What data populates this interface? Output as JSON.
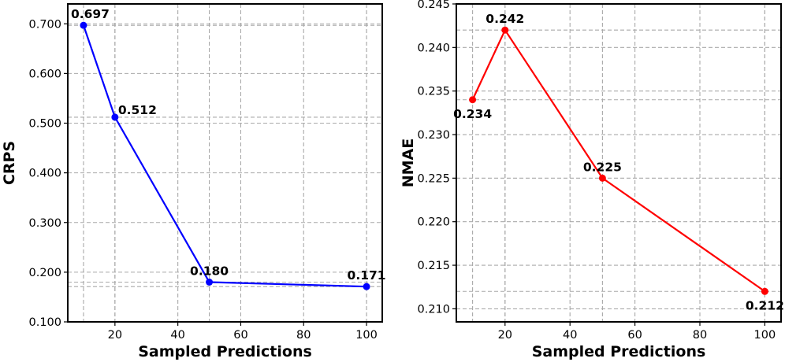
{
  "chart_data": [
    {
      "type": "line",
      "xlabel": "Sampled Predictions",
      "ylabel": "CRPS",
      "x": [
        10,
        20,
        50,
        100
      ],
      "series": [
        {
          "values": [
            0.697,
            0.512,
            0.18,
            0.171
          ],
          "color": "#0000ff"
        }
      ],
      "data_labels": [
        "0.697",
        "0.512",
        "0.180",
        "0.171"
      ],
      "xlim": [
        5,
        105
      ],
      "ylim": [
        0.1,
        0.74
      ],
      "xticks": [
        20,
        40,
        60,
        80,
        100
      ],
      "xtick_labels": [
        "20",
        "40",
        "60",
        "80",
        "100"
      ],
      "yticks": [
        0.1,
        0.2,
        0.3,
        0.4,
        0.5,
        0.6,
        0.7
      ],
      "ytick_labels": [
        "0.100",
        "0.200",
        "0.300",
        "0.400",
        "0.500",
        "0.600",
        "0.700"
      ],
      "grid": true
    },
    {
      "type": "line",
      "xlabel": "Sampled Predictions",
      "ylabel": "NMAE",
      "x": [
        10,
        20,
        50,
        100
      ],
      "series": [
        {
          "values": [
            0.234,
            0.242,
            0.225,
            0.212
          ],
          "color": "#ff0000"
        }
      ],
      "data_labels": [
        "0.234",
        "0.242",
        "0.225",
        "0.212"
      ],
      "xlim": [
        5,
        105
      ],
      "ylim": [
        0.2085,
        0.245
      ],
      "xticks": [
        20,
        40,
        60,
        80,
        100
      ],
      "xtick_labels": [
        "20",
        "40",
        "60",
        "80",
        "100"
      ],
      "yticks": [
        0.21,
        0.215,
        0.22,
        0.225,
        0.23,
        0.235,
        0.24,
        0.245
      ],
      "ytick_labels": [
        "0.210",
        "0.215",
        "0.220",
        "0.225",
        "0.230",
        "0.235",
        "0.240",
        "0.245"
      ],
      "grid": true
    }
  ]
}
